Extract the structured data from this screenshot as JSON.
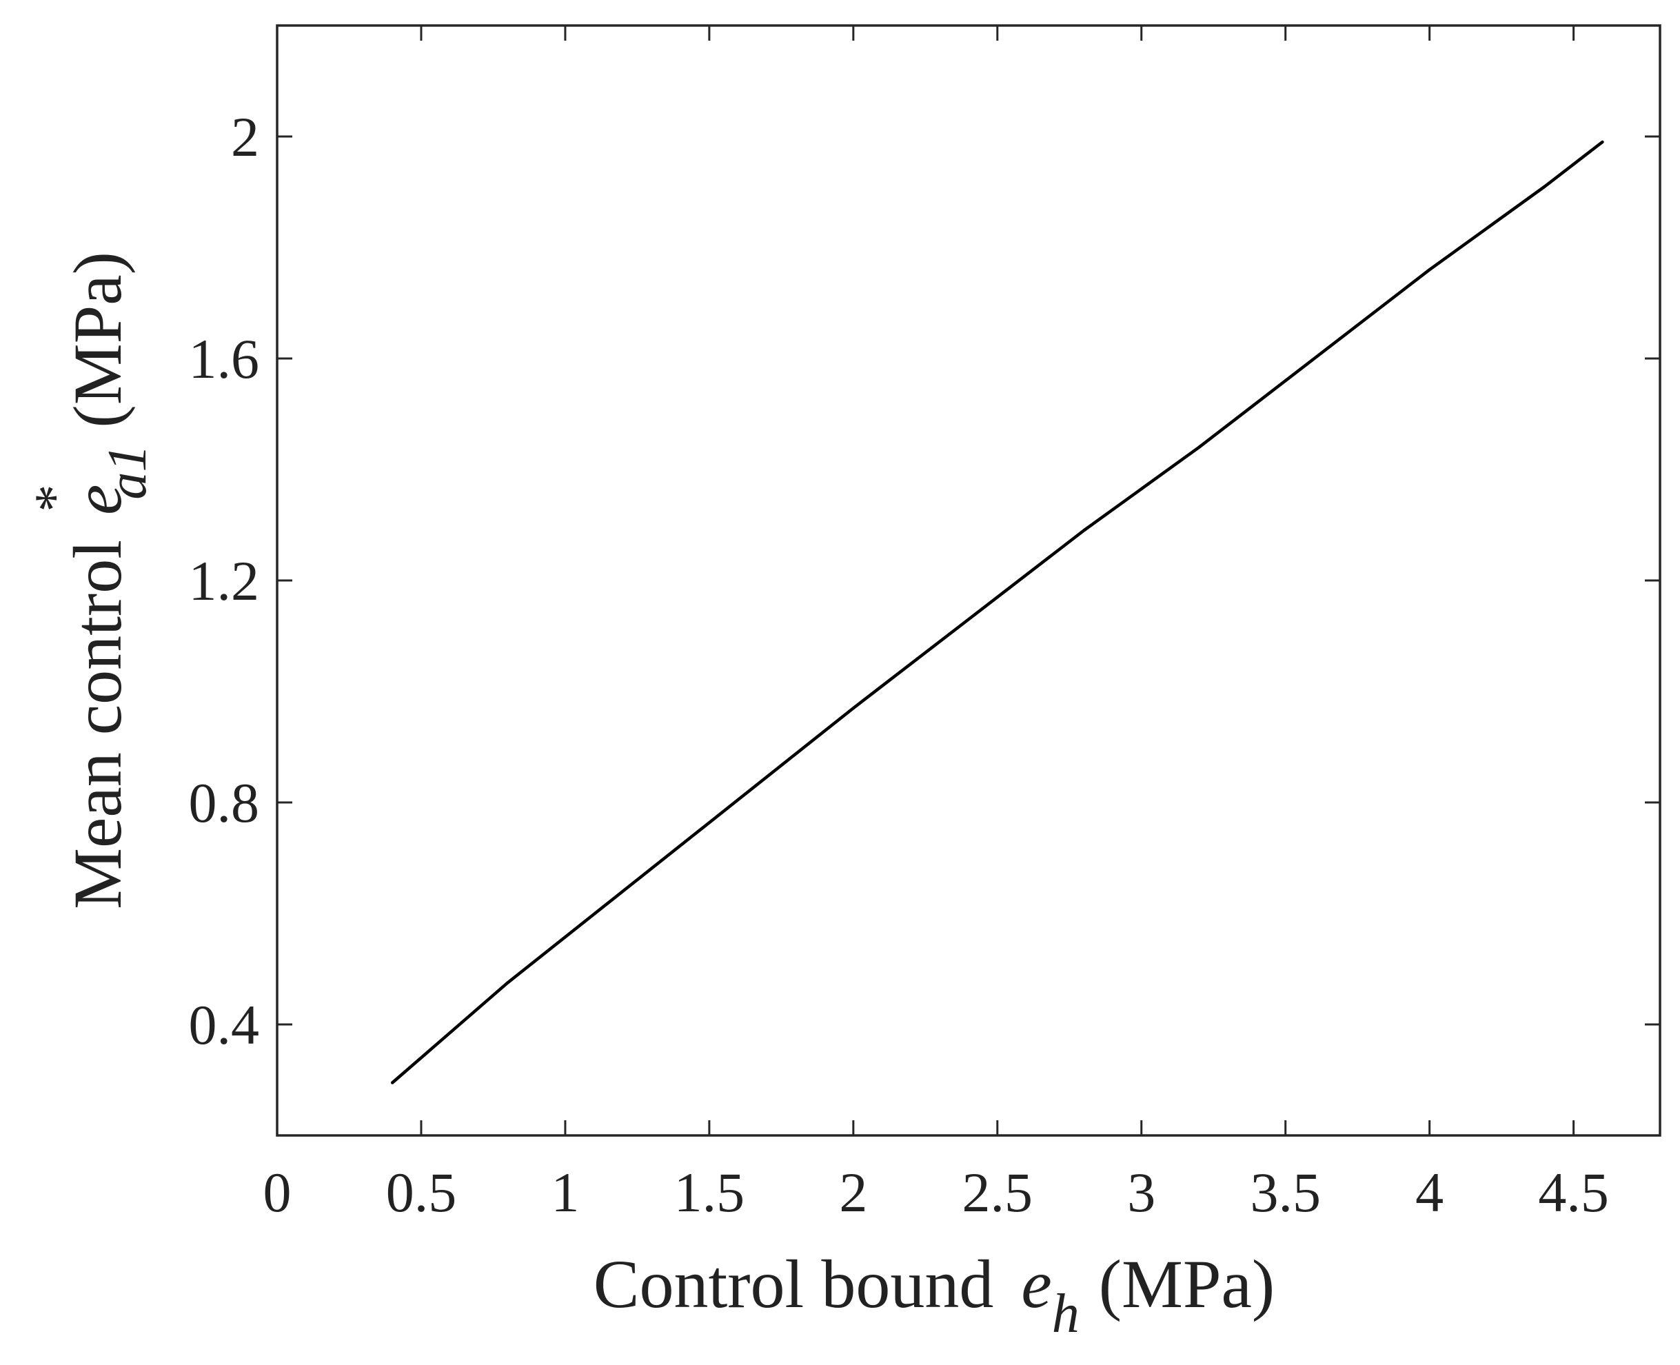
{
  "chart_data": {
    "type": "line",
    "title": "",
    "xlabel": {
      "prefix": "Control bound",
      "symbol": "e",
      "subscript": "h",
      "unit": "(MPa)"
    },
    "ylabel": {
      "prefix": "Mean control",
      "symbol": "e",
      "superscript": "*",
      "subscript": "a1",
      "unit": "(MPa)"
    },
    "xlim": [
      0,
      4.8
    ],
    "ylim": [
      0.2,
      2.2
    ],
    "xticks": [
      0,
      0.5,
      1,
      1.5,
      2,
      2.5,
      3,
      3.5,
      4,
      4.5
    ],
    "xtick_labels": [
      "0",
      "0.5",
      "1",
      "1.5",
      "2",
      "2.5",
      "3",
      "3.5",
      "4",
      "4.5"
    ],
    "yticks": [
      0.4,
      0.8,
      1.2,
      1.6,
      2.0
    ],
    "ytick_labels": [
      "0.4",
      "0.8",
      "1.2",
      "1.6",
      "2"
    ],
    "grid": false,
    "box": true,
    "series": [
      {
        "color": "#000000",
        "x": [
          0.4,
          0.8,
          1.2,
          1.6,
          2.0,
          2.4,
          2.8,
          3.2,
          3.6,
          4.0,
          4.4,
          4.6
        ],
        "y": [
          0.295,
          0.475,
          0.64,
          0.805,
          0.97,
          1.13,
          1.29,
          1.44,
          1.6,
          1.76,
          1.91,
          1.99
        ]
      }
    ]
  }
}
